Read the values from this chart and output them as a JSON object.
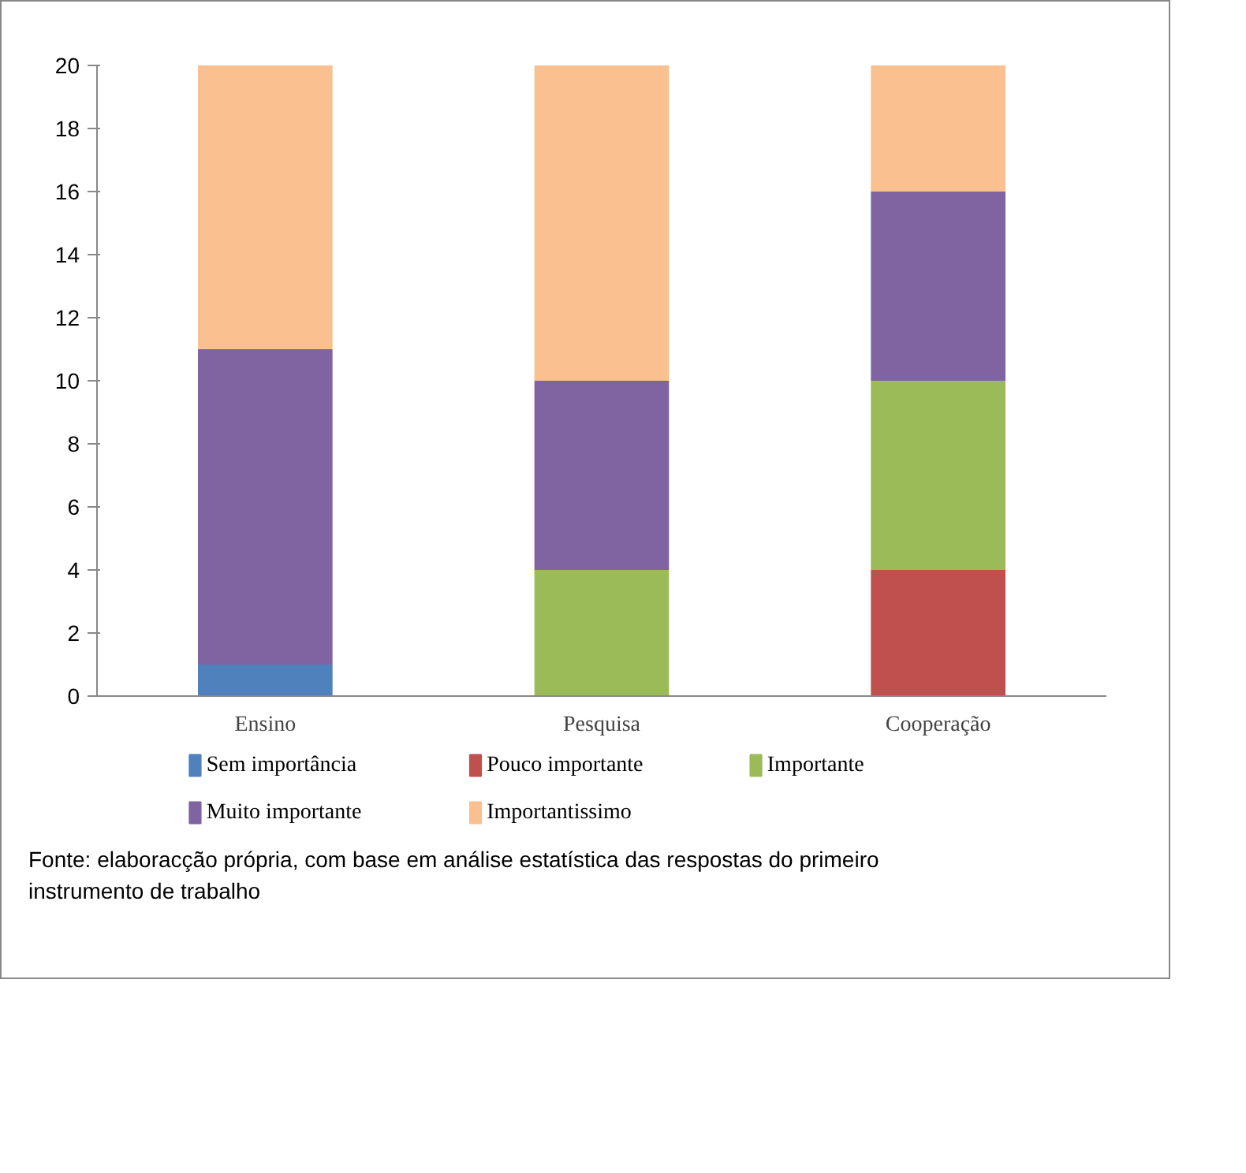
{
  "chart_data": {
    "type": "bar",
    "stacked": true,
    "categories": [
      "Ensino",
      "Pesquisa",
      "Cooperação"
    ],
    "series": [
      {
        "name": "Sem importância",
        "color": "#4f81bd",
        "values": [
          1,
          0,
          0
        ]
      },
      {
        "name": "Pouco importante",
        "color": "#c0504d",
        "values": [
          0,
          0,
          4
        ]
      },
      {
        "name": "Importante",
        "color": "#9bbb59",
        "values": [
          0,
          4,
          6
        ]
      },
      {
        "name": "Muito importante",
        "color": "#8064a2",
        "values": [
          10,
          6,
          6
        ]
      },
      {
        "name": "Importantissimo",
        "color": "#fac090",
        "values": [
          9,
          10,
          4
        ]
      }
    ],
    "ylim": [
      0,
      20
    ],
    "yticks": [
      0,
      2,
      4,
      6,
      8,
      10,
      12,
      14,
      16,
      18,
      20
    ],
    "legend": "bottom",
    "annotations": [
      "Fonte: elaboracção própria, com base em análise estatística das respostas do primeiro instrumento de trabalho"
    ]
  }
}
